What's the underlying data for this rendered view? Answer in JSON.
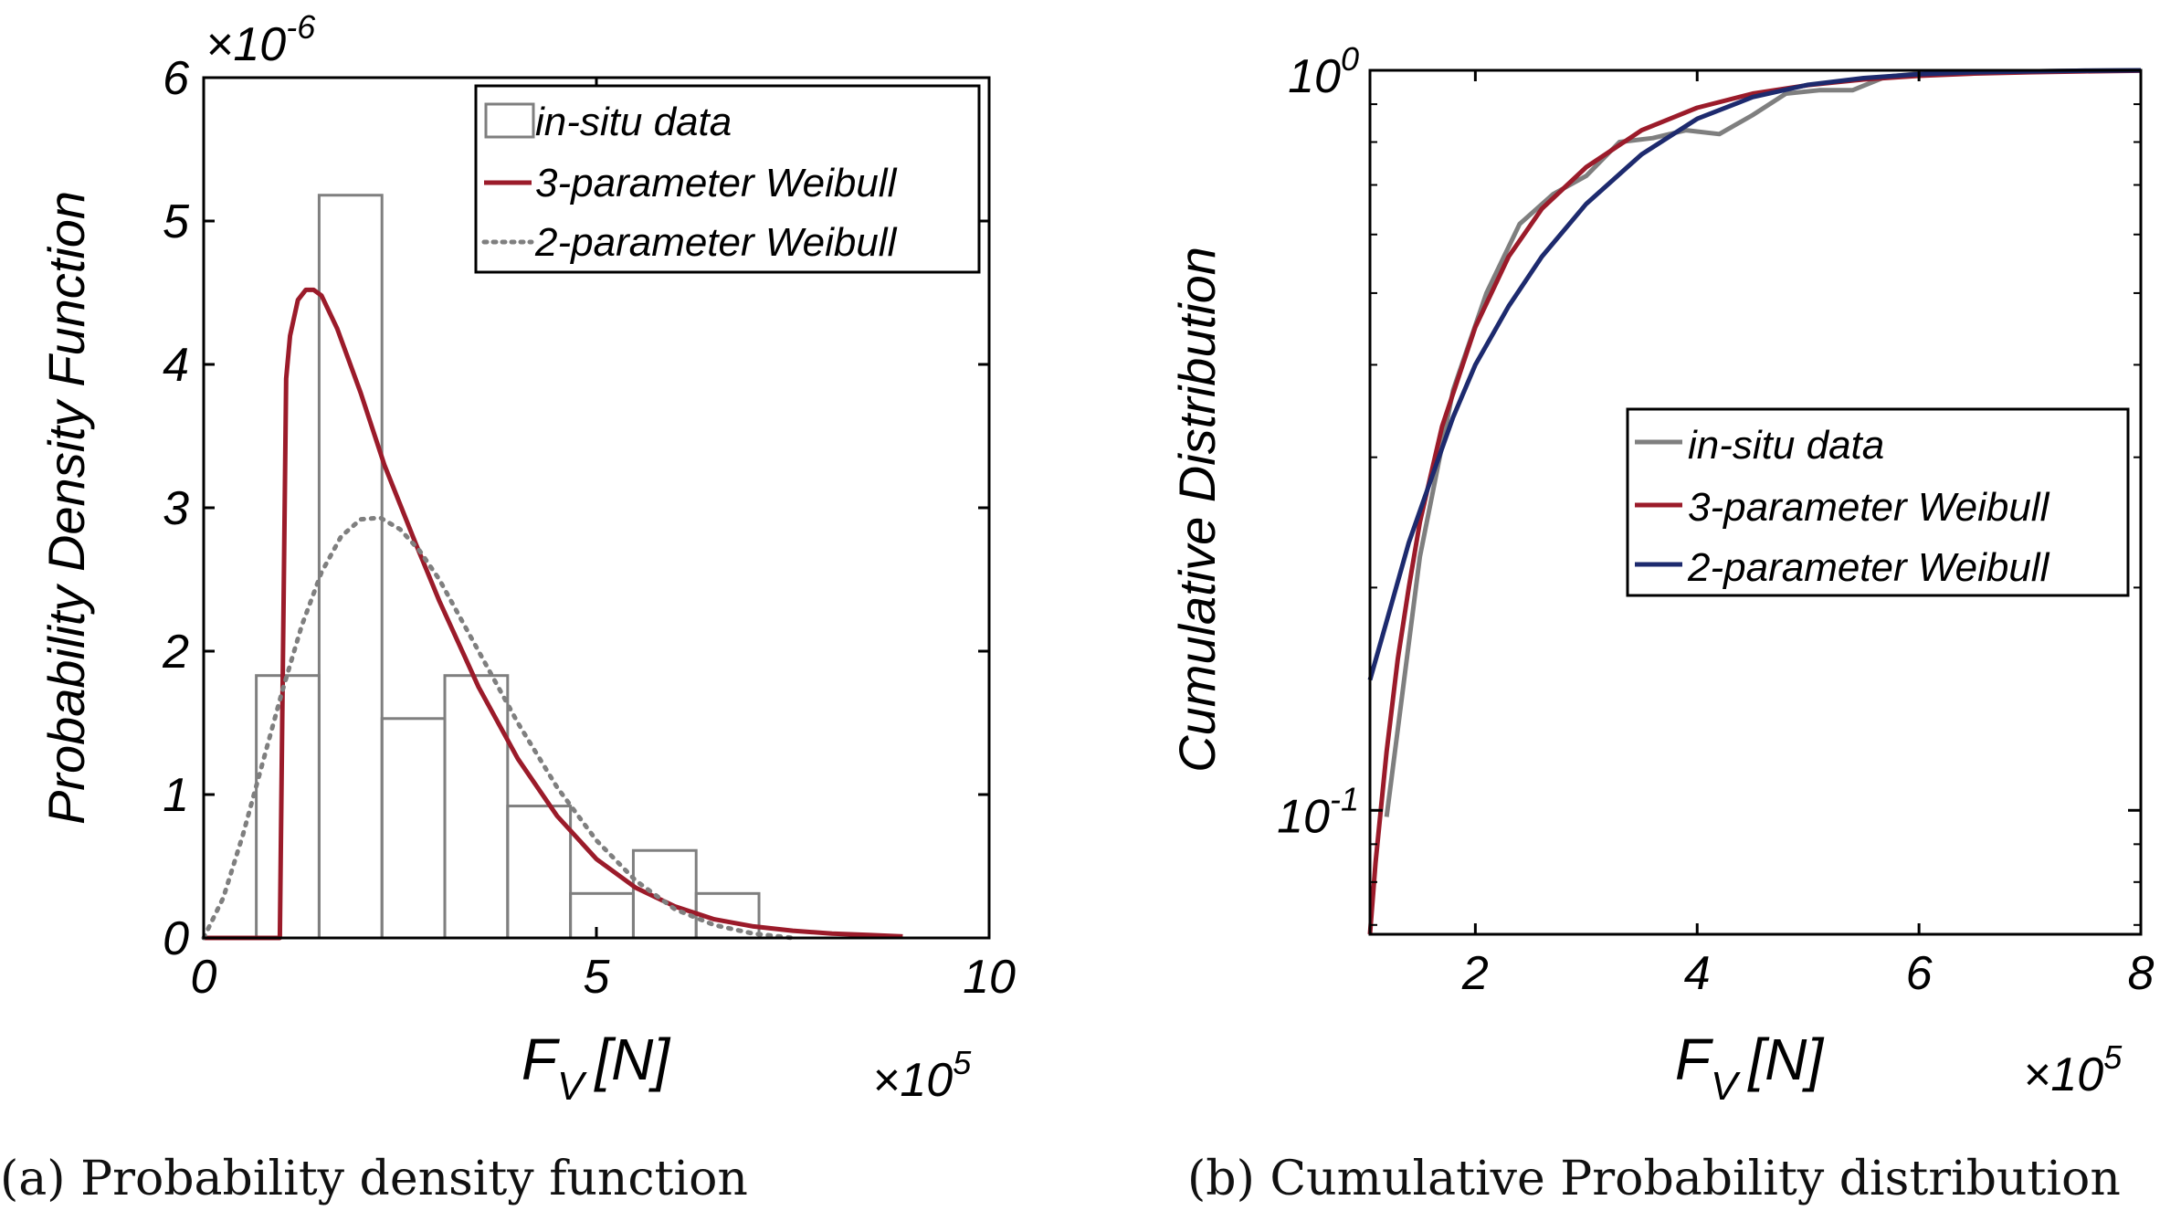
{
  "figure": {
    "caption_a": "(a) Probability density function",
    "caption_b": "(b) Cumulative Probability distribution"
  },
  "colors": {
    "hist_edge": "#7f7f7f",
    "three_param": "#9b1b2a",
    "two_param_pdf": "#7f7f7f",
    "two_param_cdf": "#1d2a6e",
    "insitu_cdf": "#7f7f7f",
    "axis": "#000000"
  },
  "chart_data": [
    {
      "type": "bar",
      "subtype": "histogram-with-density-curves",
      "title": "",
      "xlabel_main": "F",
      "xlabel_sub": "V",
      "xlabel_unit": "[N]",
      "x_multiplier_base": "×10",
      "x_multiplier_exp": "5",
      "ylabel": "Probability Density Function",
      "y_multiplier_base": "×10",
      "y_multiplier_exp": "-6",
      "xlim": [
        0,
        10
      ],
      "ylim": [
        0,
        6
      ],
      "xticks": [
        0,
        5,
        10
      ],
      "xtick_labels": [
        "0",
        "5",
        "10"
      ],
      "yticks": [
        0,
        1,
        2,
        3,
        4,
        5,
        6
      ],
      "ytick_labels": [
        "0",
        "1",
        "2",
        "3",
        "4",
        "5",
        "6"
      ],
      "grid": false,
      "legend_position": "top-right",
      "legend": [
        "in-situ data",
        "3-parameter Weibull",
        "2-parameter Weibull"
      ],
      "histogram": {
        "name": "in-situ data",
        "bin_edges": [
          0.67,
          1.47,
          2.27,
          3.07,
          3.87,
          4.67,
          5.47,
          6.27,
          7.07
        ],
        "values": [
          1.83,
          5.18,
          1.53,
          1.83,
          0.92,
          0.31,
          0.61,
          0.31
        ]
      },
      "series": [
        {
          "name": "3-parameter Weibull",
          "style": "solid",
          "x": [
            0.0,
            0.97,
            1.0,
            1.05,
            1.1,
            1.2,
            1.3,
            1.4,
            1.5,
            1.7,
            2.0,
            2.3,
            2.7,
            3.0,
            3.5,
            4.0,
            4.5,
            5.0,
            5.5,
            6.0,
            6.5,
            7.0,
            7.5,
            8.0,
            8.5,
            8.9
          ],
          "values": [
            0.0,
            0.0,
            1.5,
            3.9,
            4.2,
            4.45,
            4.52,
            4.52,
            4.48,
            4.25,
            3.8,
            3.3,
            2.75,
            2.35,
            1.75,
            1.25,
            0.85,
            0.55,
            0.35,
            0.22,
            0.13,
            0.08,
            0.05,
            0.03,
            0.02,
            0.01
          ]
        },
        {
          "name": "2-parameter Weibull",
          "style": "dotted",
          "x": [
            0.0,
            0.25,
            0.5,
            0.75,
            1.0,
            1.25,
            1.5,
            1.75,
            2.0,
            2.25,
            2.5,
            2.75,
            3.0,
            3.5,
            4.0,
            4.5,
            5.0,
            5.5,
            6.0,
            6.5,
            7.0,
            7.5
          ],
          "values": [
            0.0,
            0.28,
            0.72,
            1.22,
            1.72,
            2.18,
            2.55,
            2.8,
            2.92,
            2.93,
            2.85,
            2.7,
            2.5,
            2.0,
            1.5,
            1.05,
            0.68,
            0.4,
            0.2,
            0.09,
            0.03,
            0.0
          ]
        }
      ]
    },
    {
      "type": "line",
      "title": "",
      "xlabel_main": "F",
      "xlabel_sub": "V",
      "xlabel_unit": "[N]",
      "x_multiplier_base": "×10",
      "x_multiplier_exp": "5",
      "ylabel": "Cumulative Distribution",
      "xlim": [
        1.05,
        8.0
      ],
      "ylim": [
        0.068,
        1.0
      ],
      "yscale": "log",
      "xticks": [
        2,
        4,
        6,
        8
      ],
      "xtick_labels": [
        "2",
        "4",
        "6",
        "8"
      ],
      "ytick_major": [
        0.1,
        1.0
      ],
      "ytick_labels": [
        {
          "base": "10",
          "exp": "-1"
        },
        {
          "base": "10",
          "exp": "0"
        }
      ],
      "grid": false,
      "legend_position": "center-right",
      "legend": [
        "in-situ data",
        "3-parameter Weibull",
        "2-parameter Weibull"
      ],
      "series": [
        {
          "name": "in-situ data",
          "x": [
            1.2,
            1.5,
            1.8,
            2.1,
            2.4,
            2.7,
            3.0,
            3.3,
            3.6,
            3.9,
            4.2,
            4.5,
            4.8,
            5.1,
            5.4,
            5.7,
            6.0,
            6.5,
            7.0,
            7.5,
            8.0
          ],
          "values": [
            0.098,
            0.22,
            0.37,
            0.5,
            0.62,
            0.68,
            0.72,
            0.8,
            0.81,
            0.83,
            0.82,
            0.87,
            0.93,
            0.94,
            0.94,
            0.98,
            0.99,
            0.995,
            0.997,
            0.999,
            1.0
          ]
        },
        {
          "name": "3-parameter Weibull",
          "x": [
            1.05,
            1.1,
            1.2,
            1.3,
            1.4,
            1.5,
            1.7,
            2.0,
            2.3,
            2.6,
            3.0,
            3.5,
            4.0,
            4.5,
            5.0,
            5.5,
            6.0,
            6.5,
            7.0,
            7.5,
            8.0
          ],
          "values": [
            0.068,
            0.085,
            0.12,
            0.16,
            0.2,
            0.245,
            0.33,
            0.45,
            0.56,
            0.65,
            0.74,
            0.83,
            0.89,
            0.93,
            0.955,
            0.972,
            0.983,
            0.99,
            0.994,
            0.997,
            0.999
          ]
        },
        {
          "name": "2-parameter Weibull",
          "x": [
            1.05,
            1.2,
            1.4,
            1.6,
            1.8,
            2.0,
            2.3,
            2.6,
            3.0,
            3.5,
            4.0,
            4.5,
            5.0,
            5.5,
            6.0,
            6.5,
            7.0,
            7.5,
            8.0
          ],
          "values": [
            0.15,
            0.18,
            0.23,
            0.28,
            0.34,
            0.4,
            0.48,
            0.56,
            0.66,
            0.77,
            0.86,
            0.92,
            0.956,
            0.976,
            0.988,
            0.994,
            0.997,
            0.999,
            1.0
          ]
        }
      ]
    }
  ]
}
